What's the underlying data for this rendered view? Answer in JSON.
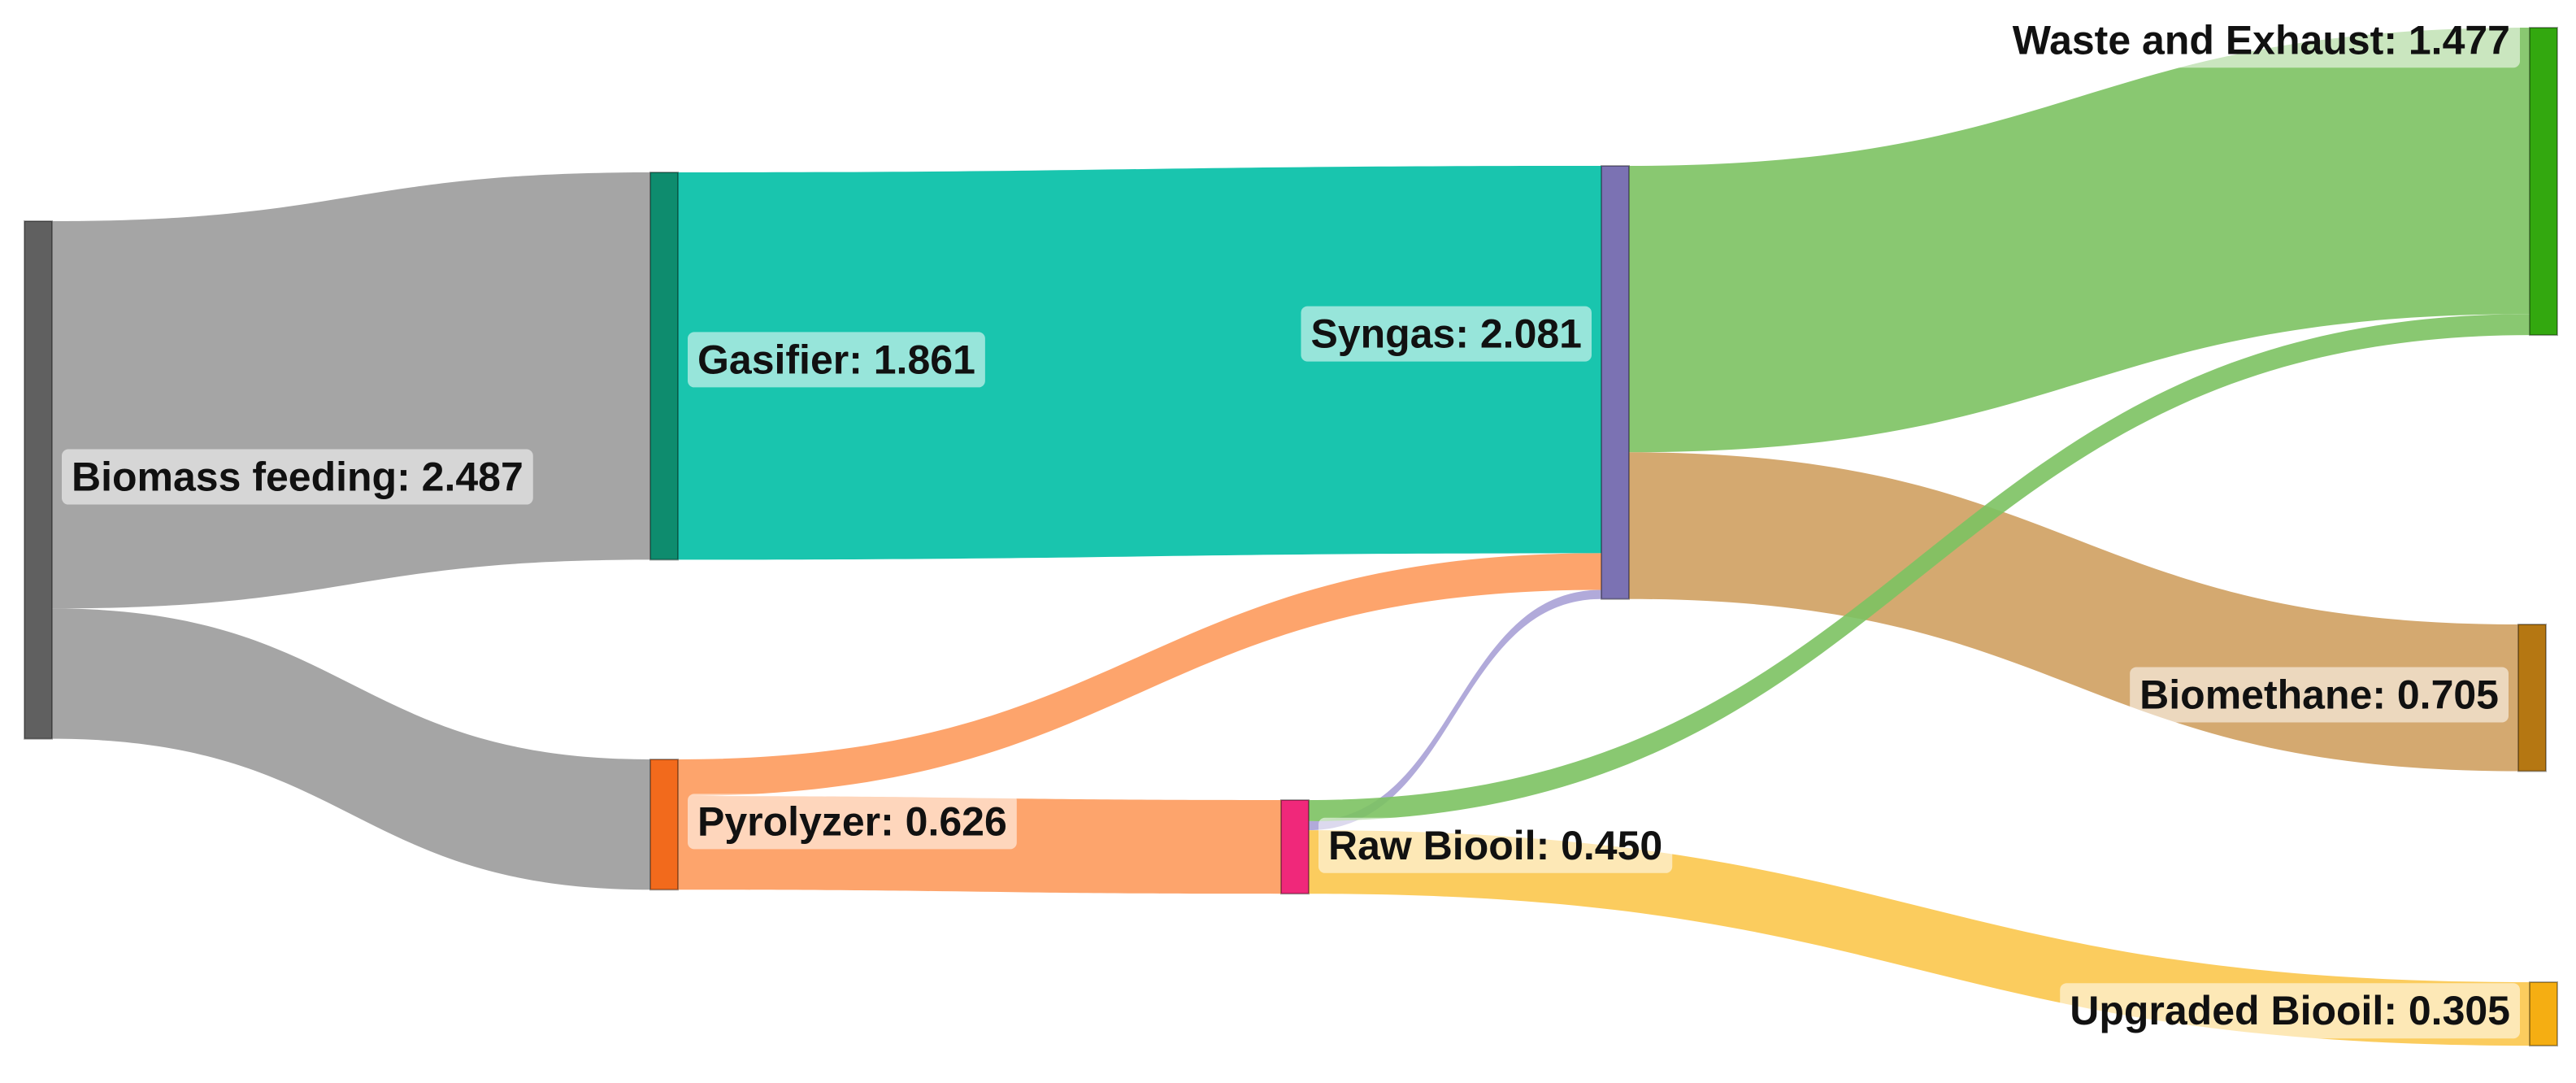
{
  "chart_data": {
    "type": "sankey",
    "title": "",
    "nodes": [
      {
        "id": "biomass",
        "name": "Biomass feeding",
        "value": 2.487,
        "value_text": "2.487",
        "color": "#606060"
      },
      {
        "id": "gasifier",
        "name": "Gasifier",
        "value": 1.861,
        "value_text": "1.861",
        "color": "#0E8C6E"
      },
      {
        "id": "pyrolyzer",
        "name": "Pyrolyzer",
        "value": 0.626,
        "value_text": "0.626",
        "color": "#F26A1C"
      },
      {
        "id": "syngas",
        "name": "Syngas",
        "value": 2.081,
        "value_text": "2.081",
        "color": "#7B72B3"
      },
      {
        "id": "rawbiooil",
        "name": "Raw Biooil",
        "value": 0.45,
        "value_text": "0.450",
        "color": "#F0287A"
      },
      {
        "id": "waste",
        "name": "Waste and Exhaust",
        "value": 1.477,
        "value_text": "1.477",
        "color": "#33A80F"
      },
      {
        "id": "biomethane",
        "name": "Biomethane",
        "value": 0.705,
        "value_text": "0.705",
        "color": "#B57712"
      },
      {
        "id": "upgraded",
        "name": "Upgraded Biooil",
        "value": 0.305,
        "value_text": "0.305",
        "color": "#F5AE12"
      }
    ],
    "links": [
      {
        "source": "biomass",
        "target": "gasifier",
        "value": 1.861,
        "color": "#9B9B9B"
      },
      {
        "source": "biomass",
        "target": "pyrolyzer",
        "value": 0.626,
        "color": "#9B9B9B"
      },
      {
        "source": "gasifier",
        "target": "syngas",
        "value": 1.861,
        "color": "#00BFA5"
      },
      {
        "source": "pyrolyzer",
        "target": "syngas",
        "value": 0.176,
        "color": "#FD9A5C"
      },
      {
        "source": "pyrolyzer",
        "target": "rawbiooil",
        "value": 0.45,
        "color": "#FD9A5C"
      },
      {
        "source": "rawbiooil",
        "target": "syngas",
        "value": 0.044,
        "color": "#A9A1D6"
      },
      {
        "source": "syngas",
        "target": "waste",
        "value": 1.376,
        "color": "#7CC262"
      },
      {
        "source": "syngas",
        "target": "biomethane",
        "value": 0.705,
        "color": "#CFA060"
      },
      {
        "source": "rawbiooil",
        "target": "waste",
        "value": 0.101,
        "color": "#7CC262"
      },
      {
        "source": "rawbiooil",
        "target": "upgraded",
        "value": 0.305,
        "color": "#FBC74D"
      }
    ]
  }
}
